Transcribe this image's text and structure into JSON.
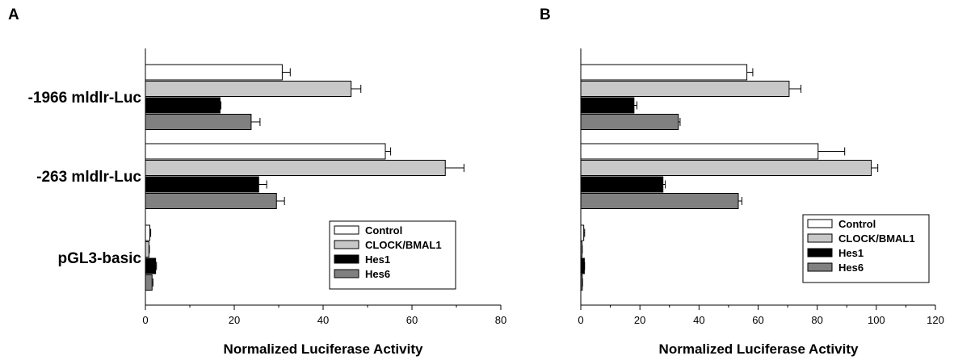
{
  "chart_data": [
    {
      "type": "bar",
      "orientation": "horizontal",
      "panel_label": "A",
      "categories": [
        "-1966 mldlr-Luc",
        "-263 mldlr-Luc",
        "pGL3-basic"
      ],
      "series": [
        {
          "name": "Control",
          "color": "#ffffff",
          "values": [
            30.8,
            54.0,
            1.0
          ],
          "errors": [
            1.8,
            1.2,
            0.2
          ]
        },
        {
          "name": "CLOCK/BMAL1",
          "color": "#c8c8c8",
          "values": [
            46.3,
            67.5,
            0.8
          ],
          "errors": [
            2.2,
            4.2,
            0.1
          ]
        },
        {
          "name": "Hes1",
          "color": "#000000",
          "values": [
            16.8,
            25.5,
            2.3
          ],
          "errors": [
            0.2,
            1.8,
            0.2
          ]
        },
        {
          "name": "Hes6",
          "color": "#808080",
          "values": [
            23.8,
            29.5,
            1.5
          ],
          "errors": [
            2.0,
            1.8,
            0.2
          ]
        }
      ],
      "xlabel": "Normalized Luciferase Activity",
      "xlim": [
        0,
        80
      ],
      "xticks": [
        "0",
        "20",
        "40",
        "60",
        "80"
      ],
      "legend": "bottom-right",
      "grid": false
    },
    {
      "type": "bar",
      "orientation": "horizontal",
      "panel_label": "B",
      "categories": [
        "-1966 mldlr-Luc",
        "-263 mldlr-Luc",
        "pGL3-basic"
      ],
      "series": [
        {
          "name": "Control",
          "color": "#ffffff",
          "values": [
            56.2,
            80.3,
            1.0
          ],
          "errors": [
            2.0,
            9.0,
            0.3
          ]
        },
        {
          "name": "CLOCK/BMAL1",
          "color": "#c8c8c8",
          "values": [
            70.5,
            98.3,
            0.4
          ],
          "errors": [
            4.0,
            2.2,
            0.1
          ]
        },
        {
          "name": "Hes1",
          "color": "#000000",
          "values": [
            18.0,
            27.8,
            1.2
          ],
          "errors": [
            1.0,
            0.8,
            0.1
          ]
        },
        {
          "name": "Hes6",
          "color": "#808080",
          "values": [
            33.0,
            53.3,
            0.5
          ],
          "errors": [
            0.6,
            1.2,
            0.1
          ]
        }
      ],
      "xlabel": "Normalized Luciferase Activity",
      "xlim": [
        0,
        120
      ],
      "xticks": [
        "0",
        "20",
        "40",
        "60",
        "80",
        "100",
        "120"
      ],
      "legend": "bottom-right",
      "grid": false
    }
  ]
}
